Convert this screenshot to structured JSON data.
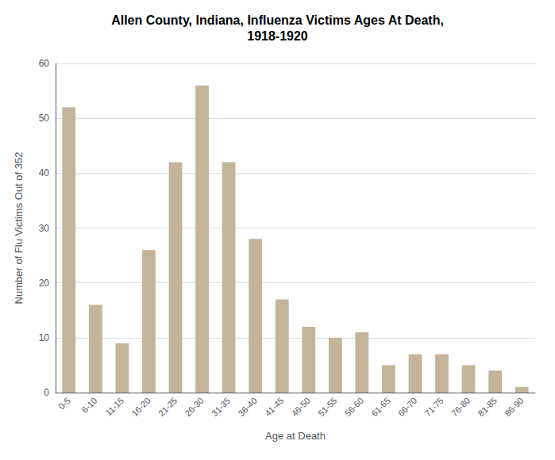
{
  "chart_data": {
    "type": "bar",
    "title": "Allen County, Indiana, Influenza Victims Ages At Death,\n1918-1920",
    "xlabel": "Age at Death",
    "ylabel": "Number of Flu Victims Out of 352",
    "categories": [
      "0-5",
      "6-10",
      "11-15",
      "16-20",
      "21-25",
      "26-30",
      "31-35",
      "36-40",
      "41-45",
      "46-50",
      "51-55",
      "56-60",
      "61-65",
      "66-70",
      "71-75",
      "76-80",
      "81-85",
      "86-90"
    ],
    "values": [
      52,
      16,
      9,
      26,
      42,
      56,
      42,
      28,
      17,
      12,
      10,
      11,
      5,
      7,
      7,
      5,
      4,
      1
    ],
    "color": "#c4b49a",
    "ylim": [
      0,
      60
    ],
    "yticks": [
      0,
      10,
      20,
      30,
      40,
      50,
      60
    ],
    "grid": true
  }
}
